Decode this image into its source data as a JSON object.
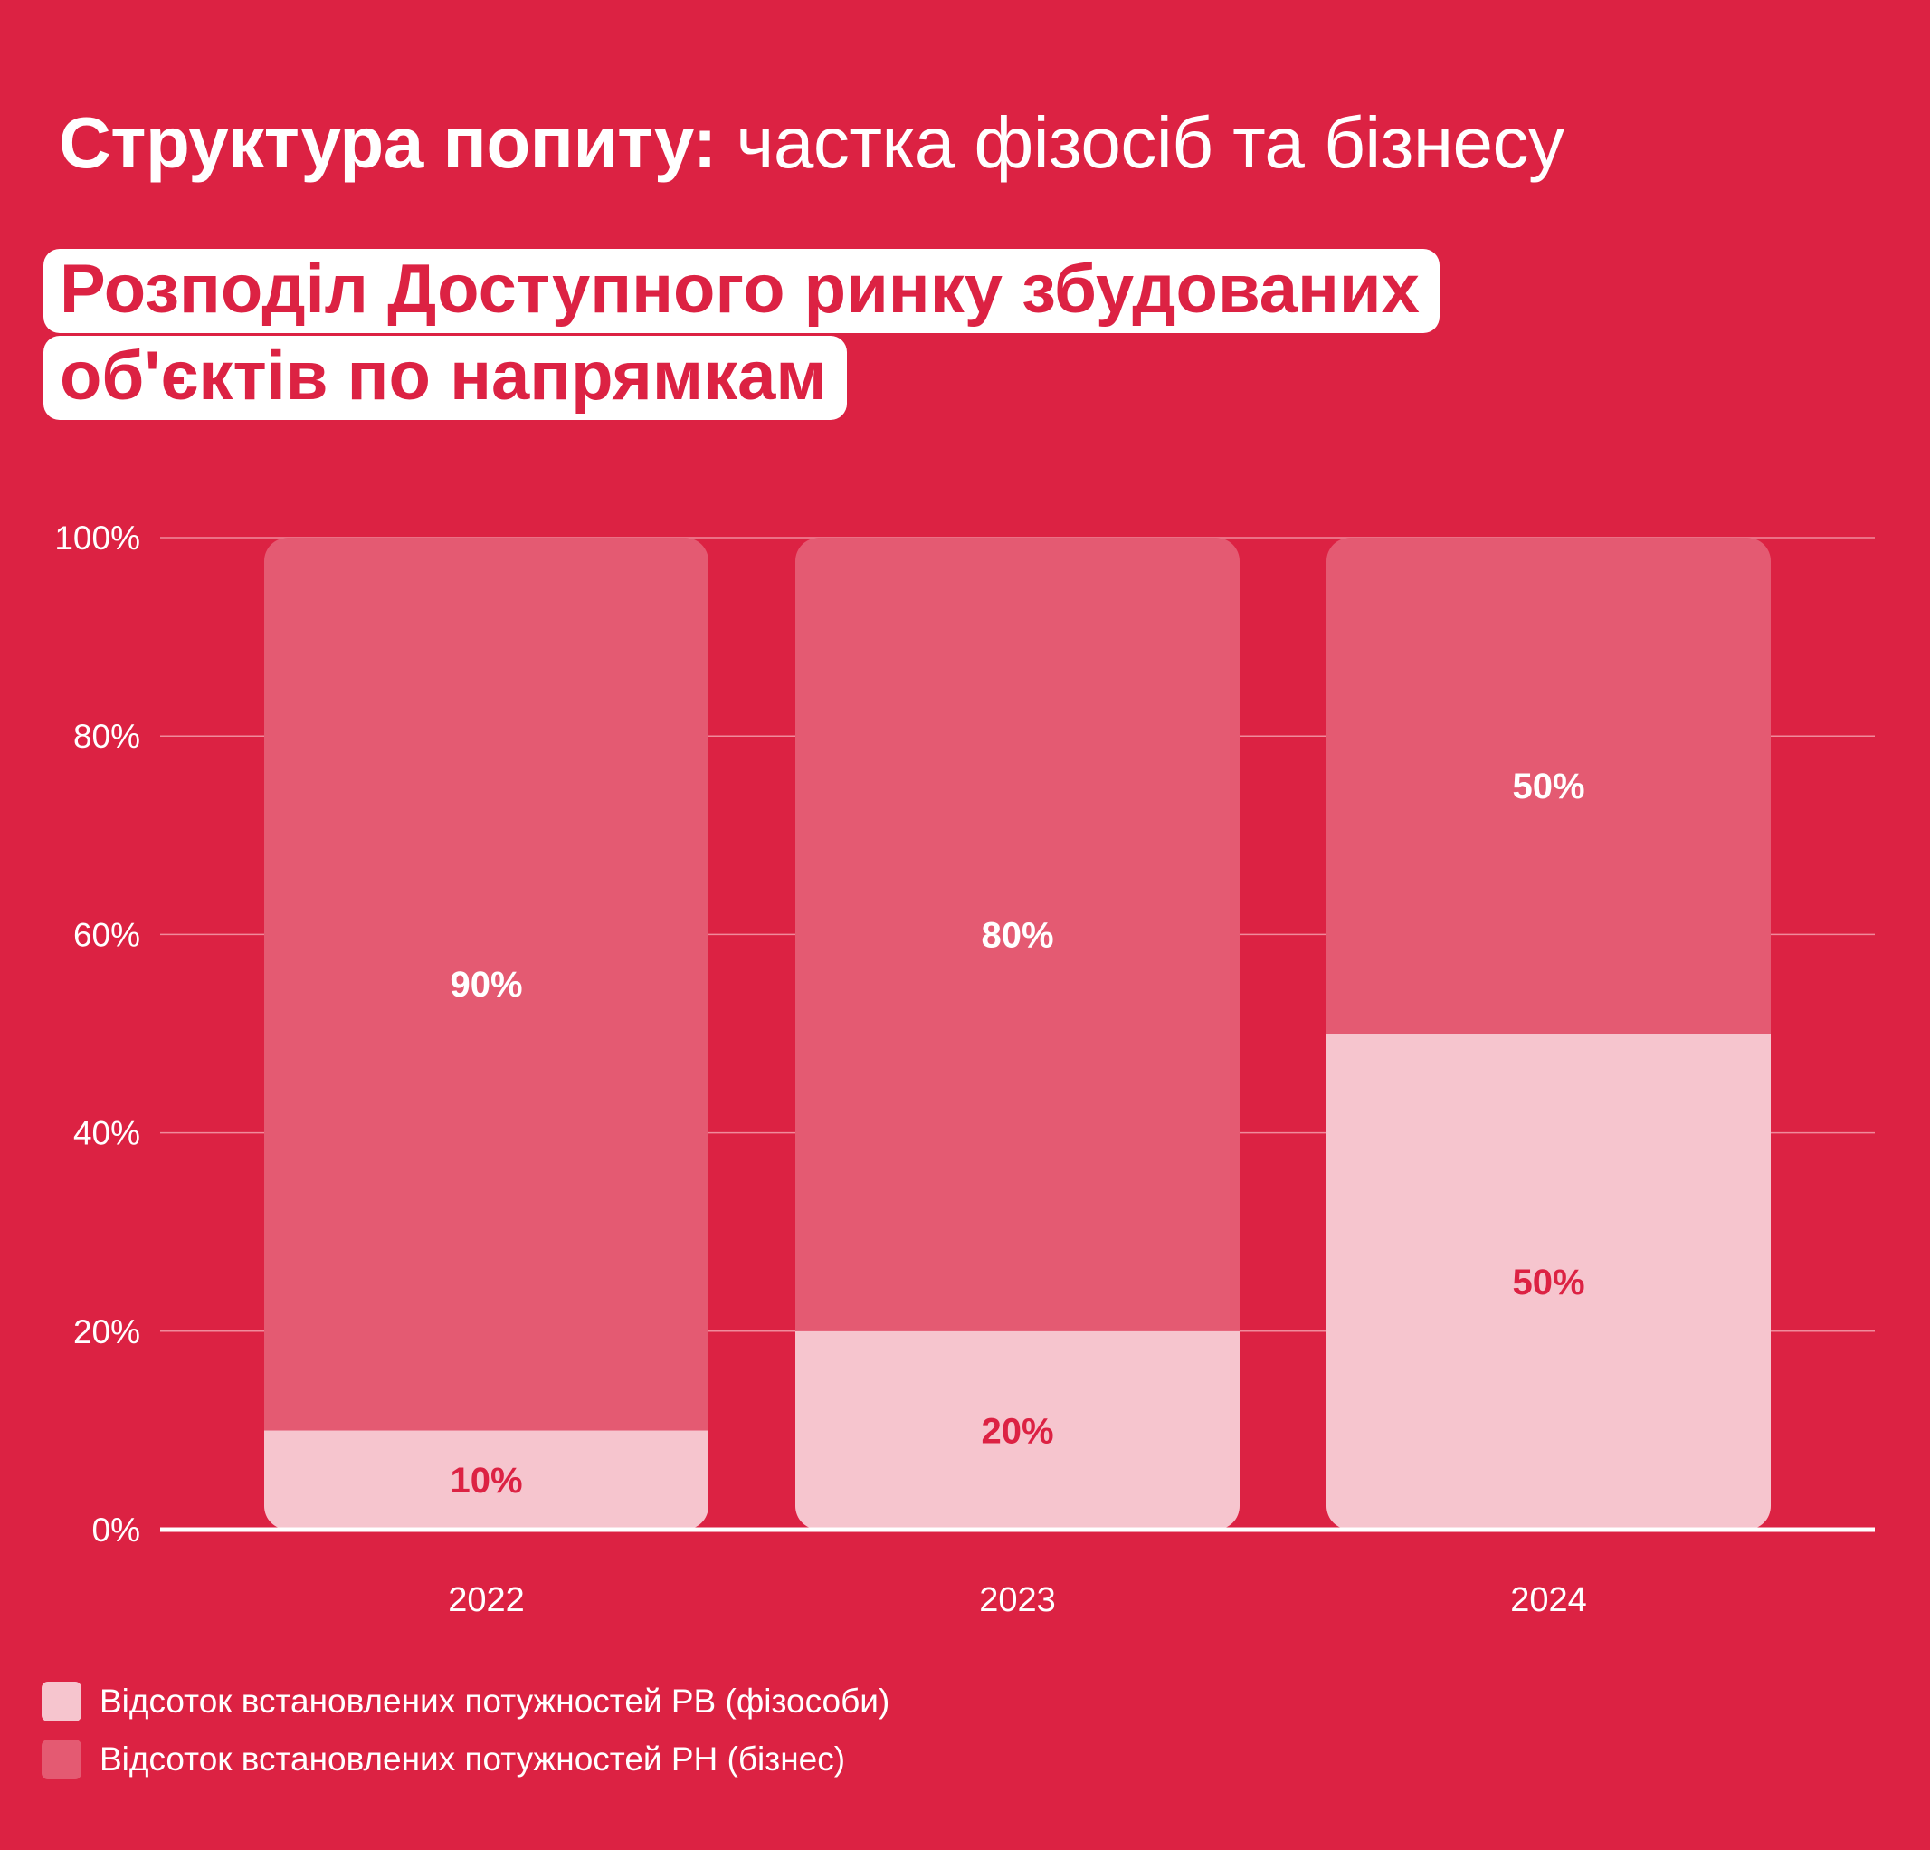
{
  "heading": {
    "bold": "Структура попиту:",
    "light": " частка фізосіб та бізнесу"
  },
  "subtitle": "Розподіл Доступного ринку збудованих об'єктів по напрямкам",
  "colors": {
    "background": "#DC2243",
    "individuals": "#F6C5CE",
    "business": "#E45A72",
    "label_on_light": "#DC2243",
    "label_on_dark": "#FFFFFF"
  },
  "chart_data": {
    "type": "bar",
    "stacked": true,
    "categories": [
      "2022",
      "2023",
      "2024"
    ],
    "series": [
      {
        "name": "Відсоток встановлених потужностей РВ (фізособи)",
        "values": [
          10,
          20,
          50
        ],
        "labels": [
          "10%",
          "20%",
          "50%"
        ]
      },
      {
        "name": "Відсоток встановлених потужностей РН (бізнес)",
        "values": [
          90,
          80,
          50
        ],
        "labels": [
          "90%",
          "80%",
          "50%"
        ]
      }
    ],
    "ylim": [
      0,
      100
    ],
    "yticks": [
      "0%",
      "20%",
      "40%",
      "60%",
      "80%",
      "100%"
    ],
    "grid": true,
    "legend": "bottom-left"
  }
}
